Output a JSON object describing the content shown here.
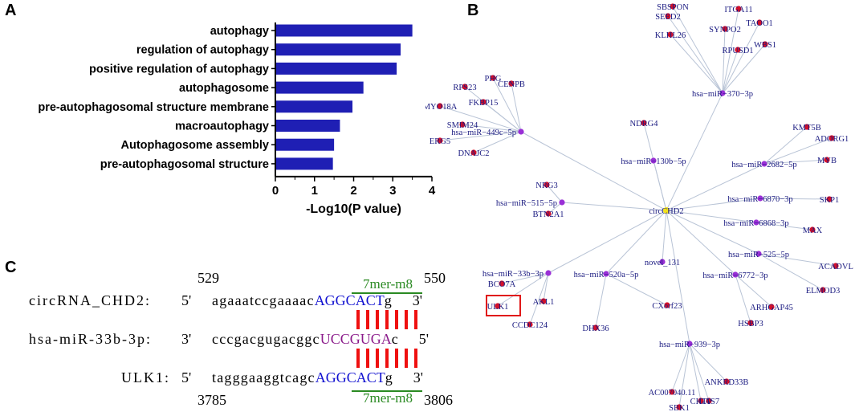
{
  "panels": {
    "a": "A",
    "b": "B",
    "c": "C"
  },
  "chart_data": {
    "type": "bar",
    "orientation": "horizontal",
    "categories": [
      "autophagy",
      "regulation of autophagy",
      "positive regulation of autophagy",
      "autophagosome",
      "pre-autophagosomal structure membrane",
      "macroautophagy",
      "Autophagosome assembly",
      "pre-autophagosomal structure"
    ],
    "values": [
      3.5,
      3.2,
      3.1,
      2.25,
      1.97,
      1.65,
      1.5,
      1.47
    ],
    "xlabel": "-Log10(P value)",
    "xticks": [
      "0",
      "1",
      "2",
      "3",
      "4"
    ],
    "xlim": [
      0,
      4
    ],
    "bar_color": "#1f1fb4"
  },
  "network": {
    "hub": "circCHD2",
    "mirna_color": "#9a2fd6",
    "gene_color": "#d4102a",
    "hub_color": "#f2e21a",
    "edge_color": "#b9c4d6",
    "label_color": "#1a1a80",
    "highlight": "ULK1",
    "mirnas": [
      {
        "name": "hsa−miR−370−3p",
        "targets": [
          "SBSPON",
          "ITGA11",
          "SEED2",
          "TAOO1",
          "SYNPO2",
          "KLHL26",
          "WBS1",
          "RPUSD1"
        ]
      },
      {
        "name": "hsa−miR−449c−5p",
        "targets": [
          "PHG",
          "CENPB",
          "RPS23",
          "FKBP15",
          "MYO18A",
          "SMIM24",
          "ERG5",
          "DNAJC2"
        ]
      },
      {
        "name": "NDRG4",
        "targets": []
      },
      {
        "name": "hsa−miR−130b−5p",
        "targets": []
      },
      {
        "name": "hsa−miR−2682−5p",
        "targets": [
          "KMT5B",
          "ADORG1",
          "MYB"
        ]
      },
      {
        "name": "hsa−miR−6870−3p",
        "targets": [
          "SKP1"
        ]
      },
      {
        "name": "hsa−miR−6868−3p",
        "targets": [
          "MAX"
        ]
      },
      {
        "name": "hsa−miR−525−5p",
        "targets": [
          "ACADVL",
          "ELMOD3"
        ]
      },
      {
        "name": "hsa−miR−6772−3p",
        "targets": [
          "ARHGAP45",
          "HSBP3"
        ]
      },
      {
        "name": "hsa−miR−939−3p",
        "targets": [
          "ANKRD33B",
          "AC007040.11",
          "CHTP",
          "GAS7",
          "SBK1"
        ]
      },
      {
        "name": "hsa−miR−520a−5p",
        "targets": [
          "CXorf23",
          "DHX36"
        ]
      },
      {
        "name": "novel_131",
        "targets": []
      },
      {
        "name": "hsa−miR−33b−3p",
        "targets": [
          "BCO7A",
          "ULK1",
          "AKL1",
          "CCDC124"
        ]
      },
      {
        "name": "hsa−miR−515−5p",
        "targets": [
          "NRG3",
          "BTN2A1"
        ]
      }
    ]
  },
  "alignment": {
    "top_start": "529",
    "top_end": "550",
    "bottom_start": "3785",
    "bottom_end": "3806",
    "site_label": "7mer-m8",
    "rows": [
      {
        "name": "circRNA_CHD2:",
        "prime_left": "5'",
        "seq": "agaaatccgaaaac",
        "core": "AGGCACT",
        "tail": "g",
        "prime_right": "3'"
      },
      {
        "name": "hsa-miR-33b-3p:",
        "prime_left": "3'",
        "seq": "cccgacgugacggc",
        "core": "UCCGUGA",
        "tail": "c",
        "prime_right": "5'"
      },
      {
        "name": "ULK1:",
        "prime_left": "5'",
        "seq": "tagggaaggtcagc",
        "core": "AGGCACT",
        "tail": "g",
        "prime_right": "3'"
      }
    ]
  }
}
